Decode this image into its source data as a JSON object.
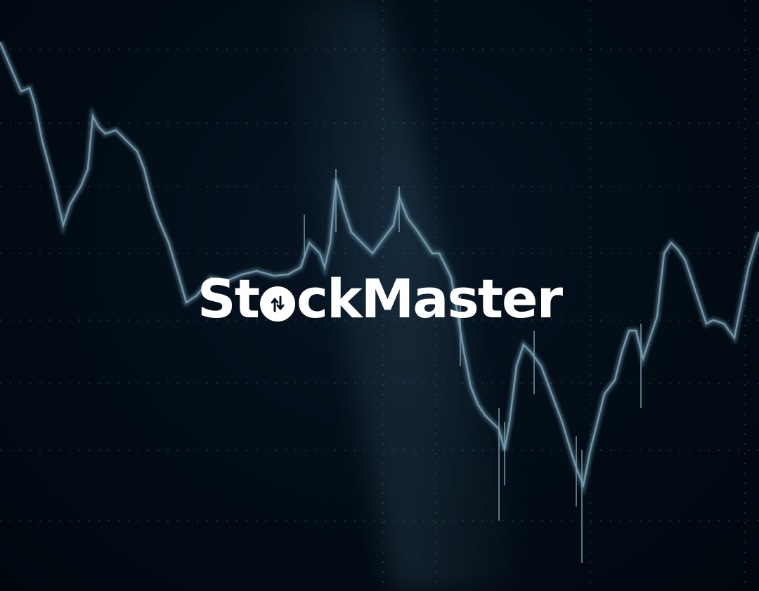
{
  "brand": {
    "name_part_1": "St",
    "name_part_2": "ckMaster",
    "logo_icon": "up-down-arrows-icon",
    "text_color": "#ffffff"
  },
  "background": {
    "kind": "stock-price-line-chart-backdrop",
    "line_color": "#7fb6cf",
    "base_color": "#020a14"
  }
}
